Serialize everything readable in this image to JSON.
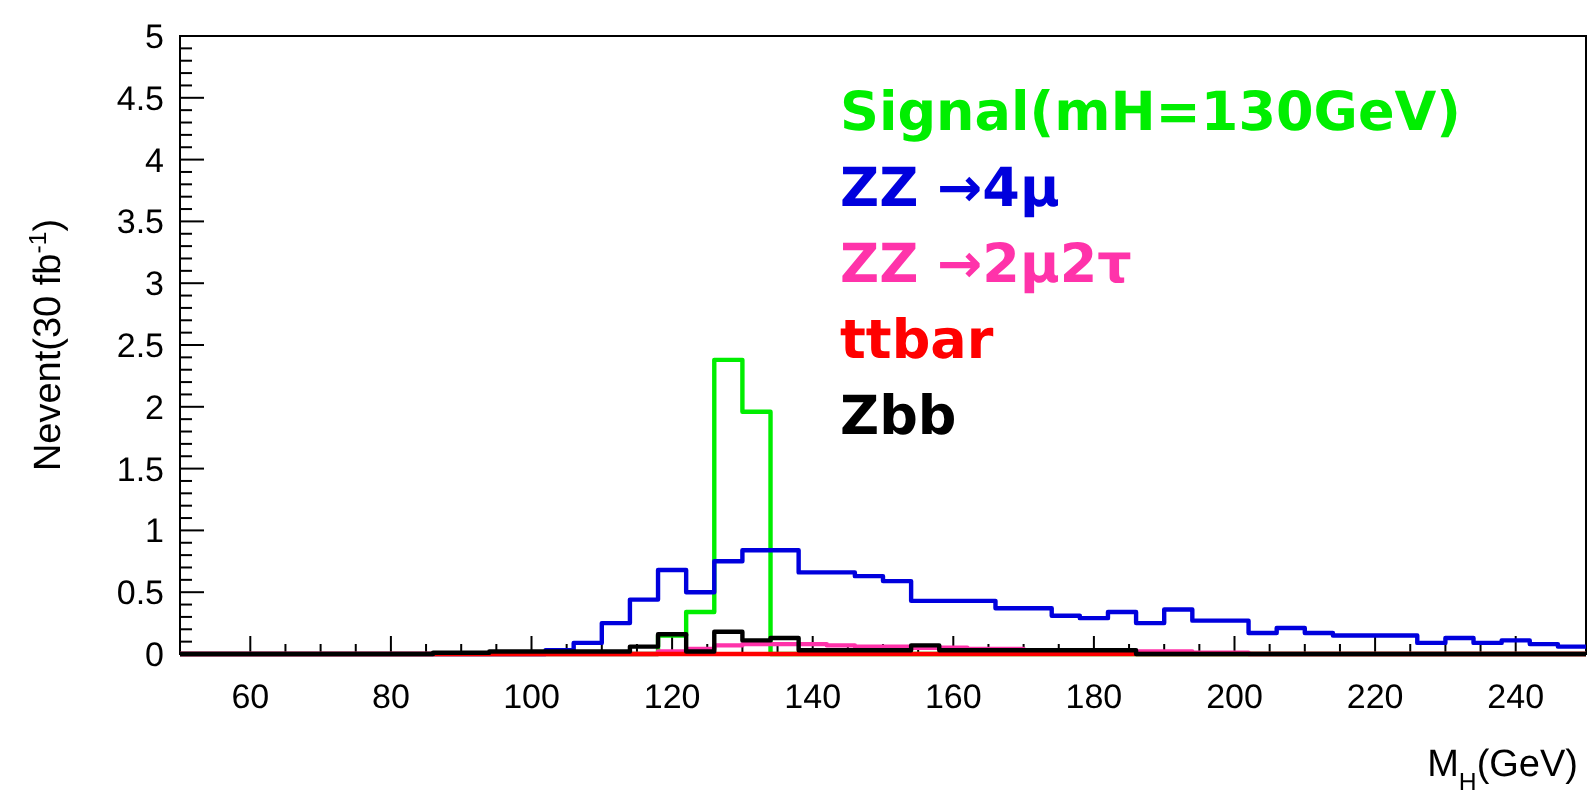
{
  "chart_data": {
    "type": "histogram",
    "xlabel": "M$_{H}$(GeV)",
    "ylabel": "Nevent(30 fb$^{-1}$)",
    "bins": [
      50,
      54,
      58,
      62,
      66,
      70,
      74,
      78,
      82,
      86,
      90,
      94,
      98,
      102,
      106,
      110,
      114,
      118,
      122,
      126,
      130,
      134,
      138,
      142,
      146,
      150,
      154,
      158,
      162,
      166,
      170,
      174,
      178,
      182,
      186,
      190,
      194,
      198,
      202,
      206,
      210,
      214,
      218,
      222,
      226,
      230,
      234,
      238,
      242,
      246,
      250
    ],
    "xlim": [
      50,
      250
    ],
    "xticks": [
      60,
      80,
      100,
      120,
      140,
      160,
      180,
      200,
      220,
      240
    ],
    "ylim": [
      0,
      5
    ],
    "yticks": [
      0,
      {
        "value": 0.5,
        "label": "0.5"
      },
      1,
      {
        "value": 1.5,
        "label": "1.5"
      },
      2,
      {
        "value": 2.5,
        "label": "2.5"
      },
      3,
      {
        "value": 3.5,
        "label": "3.5"
      },
      4,
      {
        "value": 4.5,
        "label": "4.5"
      },
      5
    ],
    "grid": false,
    "legend": "top right",
    "series": [
      {
        "name": "Signal(mH=130GeV)",
        "color": "#00ee00",
        "values": [
          0,
          0,
          0,
          0,
          0,
          0,
          0,
          0,
          0,
          0,
          0,
          0,
          0,
          0,
          0,
          0,
          0,
          0.15,
          0.34,
          2.38,
          1.96,
          0,
          0,
          0,
          0,
          0,
          0,
          0,
          0,
          0,
          0,
          0,
          0,
          0,
          0,
          0,
          0,
          0,
          0,
          0,
          0,
          0,
          0,
          0,
          0,
          0,
          0,
          0,
          0,
          0
        ]
      },
      {
        "name": "ZZ →4μ",
        "color": "#0000dd",
        "values": [
          0,
          0,
          0,
          0,
          0,
          0,
          0,
          0,
          0,
          0,
          0,
          0,
          0,
          0.03,
          0.09,
          0.25,
          0.44,
          0.68,
          0.5,
          0.75,
          0.84,
          0.84,
          0.66,
          0.66,
          0.63,
          0.59,
          0.43,
          0.43,
          0.43,
          0.37,
          0.37,
          0.31,
          0.29,
          0.34,
          0.25,
          0.36,
          0.27,
          0.27,
          0.17,
          0.21,
          0.17,
          0.15,
          0.15,
          0.15,
          0.09,
          0.13,
          0.09,
          0.11,
          0.08,
          0.06
        ]
      },
      {
        "name": "ZZ →2μ2τ",
        "color": "#ff33aa",
        "values": [
          0,
          0,
          0,
          0,
          0,
          0,
          0,
          0,
          0,
          0,
          0,
          0,
          0,
          0,
          0,
          0,
          0,
          0.02,
          0.04,
          0.07,
          0.08,
          0.08,
          0.08,
          0.07,
          0.06,
          0.06,
          0.05,
          0.05,
          0.04,
          0.04,
          0.03,
          0.03,
          0.02,
          0.02,
          0.02,
          0.02,
          0.01,
          0.01,
          0,
          0,
          0,
          0,
          0,
          0,
          0,
          0,
          0,
          0,
          0,
          0
        ]
      },
      {
        "name": "ttbar",
        "color": "#ff0000",
        "values": [
          0,
          0,
          0,
          0,
          0,
          0,
          0,
          0,
          0,
          0,
          0,
          0,
          0,
          0,
          0,
          0,
          0,
          0,
          0,
          0,
          0,
          0,
          0,
          0,
          0,
          0,
          0,
          0,
          0,
          0,
          0,
          0,
          0,
          0,
          0,
          0,
          0,
          0,
          0,
          0,
          0,
          0,
          0,
          0,
          0,
          0,
          0,
          0,
          0,
          0
        ]
      },
      {
        "name": "Zbb",
        "color": "#000000",
        "values": [
          0,
          0,
          0,
          0,
          0,
          0,
          0,
          0,
          0,
          0.01,
          0.01,
          0.02,
          0.02,
          0.02,
          0.02,
          0.02,
          0.06,
          0.16,
          0.02,
          0.18,
          0.11,
          0.13,
          0.03,
          0.03,
          0.03,
          0.03,
          0.07,
          0.03,
          0.03,
          0.03,
          0.03,
          0.03,
          0.03,
          0.03,
          0,
          0,
          0,
          0,
          0,
          0,
          0,
          0,
          0,
          0,
          0,
          0,
          0,
          0,
          0,
          0
        ]
      }
    ]
  }
}
